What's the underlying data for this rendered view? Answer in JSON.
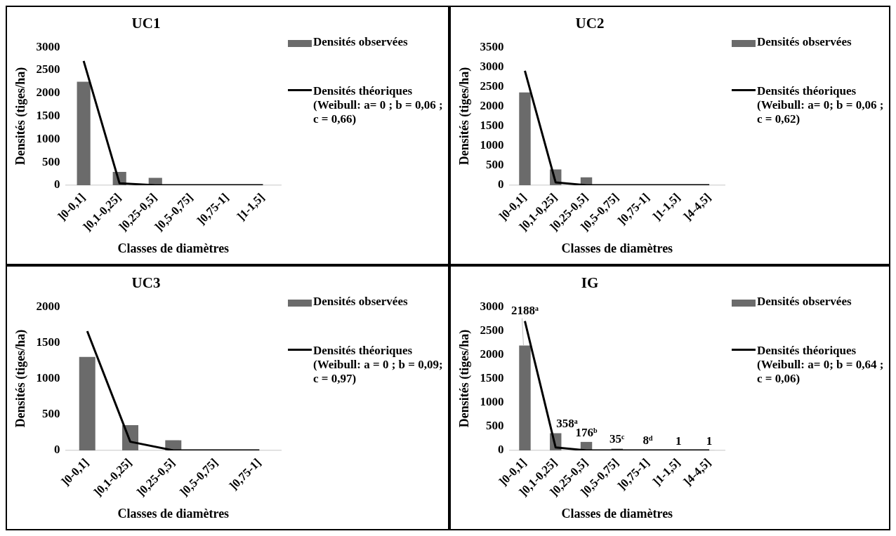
{
  "chart_data": [
    {
      "type": "bar",
      "title": "UC1",
      "xlabel": "Classes de diamètres",
      "ylabel": "Densités (tiges/ha)",
      "categories": [
        "]0-0,1]",
        "]0,1-0,25]",
        "]0,25-0,5]",
        "]0,5-0,75]",
        "]0,75-1]",
        "]1-1,5]"
      ],
      "series": [
        {
          "name": "Densités observées",
          "type": "bar",
          "color": "#6b6b6b",
          "values": [
            2250,
            290,
            160,
            0,
            0,
            0
          ]
        },
        {
          "name": "Densités théoriques (Weibull: a= 0 ; b = 0,06 ; c = 0,66)",
          "type": "line",
          "color": "#000000",
          "values": [
            2700,
            40,
            0,
            0,
            0,
            0
          ]
        }
      ],
      "ylim": [
        0,
        3000
      ],
      "yticks": [
        0,
        500,
        1000,
        1500,
        2000,
        2500,
        3000
      ],
      "legend": "right",
      "marker": "none"
    },
    {
      "type": "bar",
      "title": "UC2",
      "xlabel": "Classes de diamètres",
      "ylabel": "Densités (tiges/ha)",
      "categories": [
        "]0-0,1]",
        "]0,1-0,25]",
        "]0,25-0,5]",
        "]0,5-0,75]",
        "]0,75-1]",
        "]1-1,5]",
        "]4-4,5]"
      ],
      "series": [
        {
          "name": "Densités observées",
          "type": "bar",
          "color": "#6b6b6b",
          "values": [
            2350,
            400,
            200,
            0,
            0,
            0,
            0
          ]
        },
        {
          "name": "Densités théoriques (Weibull: a= 0; b = 0,06 ; c = 0,62)",
          "type": "line",
          "color": "#000000",
          "values": [
            2900,
            70,
            0,
            0,
            0,
            0,
            0
          ]
        }
      ],
      "ylim": [
        0,
        3500
      ],
      "yticks": [
        0,
        500,
        1000,
        1500,
        2000,
        2500,
        3000,
        3500
      ],
      "legend": "right",
      "marker": "none"
    },
    {
      "type": "bar",
      "title": "UC3",
      "xlabel": "Classes de diamètres",
      "ylabel": "Densités (tiges/ha)",
      "categories": [
        "]0-0,1]",
        "]0,1-0,25]",
        "]0,25-0,5]",
        "]0,5-0,75]",
        "]0,75-1]"
      ],
      "series": [
        {
          "name": "Densités observées",
          "type": "bar",
          "color": "#6b6b6b",
          "values": [
            1300,
            350,
            140,
            0,
            0
          ]
        },
        {
          "name": "Densités théoriques (Weibull: a = 0 ; b =  0,09; c = 0,97)",
          "type": "line",
          "color": "#000000",
          "values": [
            1660,
            120,
            0,
            0,
            0
          ]
        }
      ],
      "ylim": [
        0,
        2000
      ],
      "yticks": [
        0,
        500,
        1000,
        1500,
        2000
      ],
      "legend": "right",
      "marker": "none"
    },
    {
      "type": "bar",
      "title": "IG",
      "xlabel": "Classes de diamètres",
      "ylabel": "Densités (tiges/ha)",
      "categories": [
        "]0-0,1]",
        "]0,1-0,25]",
        "]0,25-0,5]",
        "]0,5-0,75]",
        "]0,75-1]",
        "]1-1,5]",
        "]4-4,5]"
      ],
      "series": [
        {
          "name": "Densités observées",
          "type": "bar",
          "color": "#6b6b6b",
          "values": [
            2188,
            358,
            176,
            35,
            8,
            1,
            1
          ],
          "value_labels": [
            "2188ᵃ",
            "358ᵃ",
            "176ᵇ",
            "35ᶜ",
            "8ᵈ",
            "1",
            "1"
          ]
        },
        {
          "name": "Densités théoriques (Weibull: a= 0; b = 0,64 ; c = 0,06)",
          "type": "line",
          "color": "#000000",
          "values": [
            2700,
            60,
            0,
            0,
            0,
            0,
            0
          ]
        }
      ],
      "ylim": [
        0,
        3000
      ],
      "yticks": [
        0,
        500,
        1000,
        1500,
        2000,
        2500,
        3000
      ],
      "legend": "right",
      "marker": "none"
    }
  ]
}
